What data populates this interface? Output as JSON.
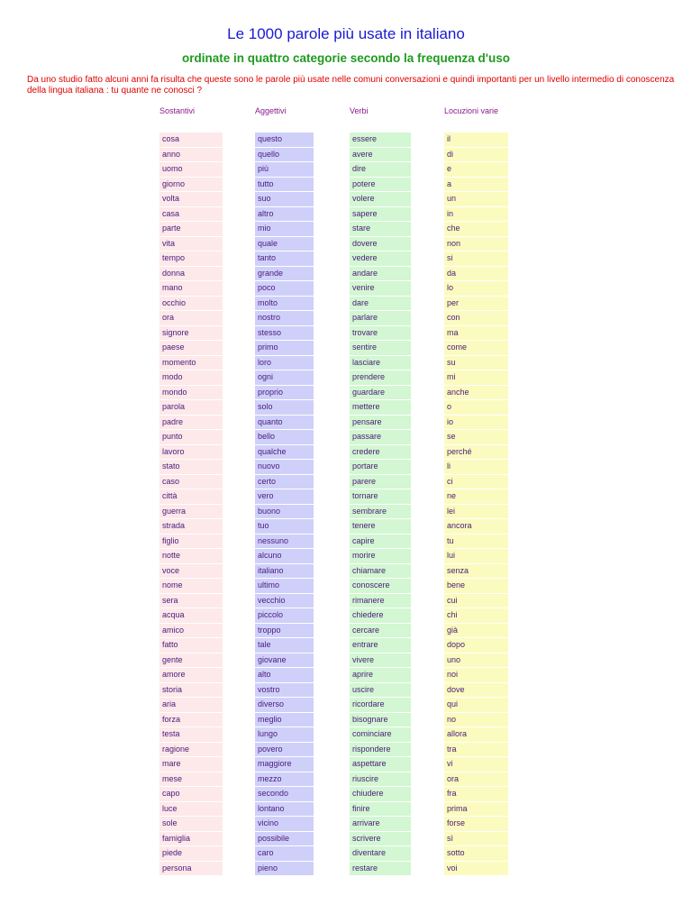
{
  "title": "Le 1000 parole più usate in italiano",
  "subtitle": "ordinate in quattro categorie secondo la frequenza d'uso",
  "intro": "Da uno studio fatto alcuni anni fa risulta che queste sono le parole più usate nelle comuni conversazioni e quindi importanti per un livello intermedio di conoscenza della lingua italiana : tu quante ne conosci ?",
  "columns": [
    {
      "header": "Sostantivi",
      "words": [
        "cosa",
        "anno",
        "uomo",
        "giorno",
        "volta",
        "casa",
        "parte",
        "vita",
        "tempo",
        "donna",
        "mano",
        "occhio",
        "ora",
        "signore",
        "paese",
        "momento",
        "modo",
        "mondo",
        "parola",
        "padre",
        "punto",
        "lavoro",
        "stato",
        "caso",
        "città",
        "guerra",
        "strada",
        "figlio",
        "notte",
        "voce",
        "nome",
        "sera",
        "acqua",
        "amico",
        "fatto",
        "gente",
        "amore",
        "storia",
        "aria",
        "forza",
        "testa",
        "ragione",
        "mare",
        "mese",
        "capo",
        "luce",
        "sole",
        "famiglia",
        "piede",
        "persona"
      ]
    },
    {
      "header": "Aggettivi",
      "words": [
        "questo",
        "quello",
        "più",
        "tutto",
        "suo",
        "altro",
        "mio",
        "quale",
        "tanto",
        "grande",
        "poco",
        "molto",
        "nostro",
        "stesso",
        "primo",
        "loro",
        "ogni",
        "proprio",
        "solo",
        "quanto",
        "bello",
        "qualche",
        "nuovo",
        "certo",
        "vero",
        "buono",
        "tuo",
        "nessuno",
        "alcuno",
        "italiano",
        "ultimo",
        "vecchio",
        "piccolo",
        "troppo",
        "tale",
        "giovane",
        "alto",
        "vostro",
        "diverso",
        "meglio",
        "lungo",
        "povero",
        "maggiore",
        "mezzo",
        "secondo",
        "lontano",
        "vicino",
        "possibile",
        "caro",
        "pieno"
      ]
    },
    {
      "header": "Verbi",
      "words": [
        "essere",
        "avere",
        "dire",
        "potere",
        "volere",
        "sapere",
        "stare",
        "dovere",
        "vedere",
        "andare",
        "venire",
        "dare",
        "parlare",
        "trovare",
        "sentire",
        "lasciare",
        "prendere",
        "guardare",
        "mettere",
        "pensare",
        "passare",
        "credere",
        "portare",
        "parere",
        "tornare",
        "sembrare",
        "tenere",
        "capire",
        "morire",
        "chiamare",
        "conoscere",
        "rimanere",
        "chiedere",
        "cercare",
        "entrare",
        "vivere",
        "aprire",
        "uscire",
        "ricordare",
        "bisognare",
        "cominciare",
        "rispondere",
        "aspettare",
        "riuscire",
        "chiudere",
        "finire",
        "arrivare",
        "scrivere",
        "diventare",
        "restare"
      ]
    },
    {
      "header": "Locuzioni varie",
      "words": [
        "il",
        "di",
        "e",
        "a",
        "un",
        "in",
        "che",
        "non",
        "si",
        "da",
        "lo",
        "per",
        "con",
        "ma",
        "come",
        "su",
        "mi",
        "anche",
        "o",
        "io",
        "se",
        "perché",
        "li",
        "ci",
        "ne",
        "lei",
        "ancora",
        "tu",
        "lui",
        "senza",
        "bene",
        "cui",
        "chi",
        "già",
        "dopo",
        "uno",
        "noi",
        "dove",
        "qui",
        "no",
        "allora",
        "tra",
        "vi",
        "ora",
        "fra",
        "prima",
        "forse",
        "sì",
        "sotto",
        "voi"
      ]
    }
  ]
}
